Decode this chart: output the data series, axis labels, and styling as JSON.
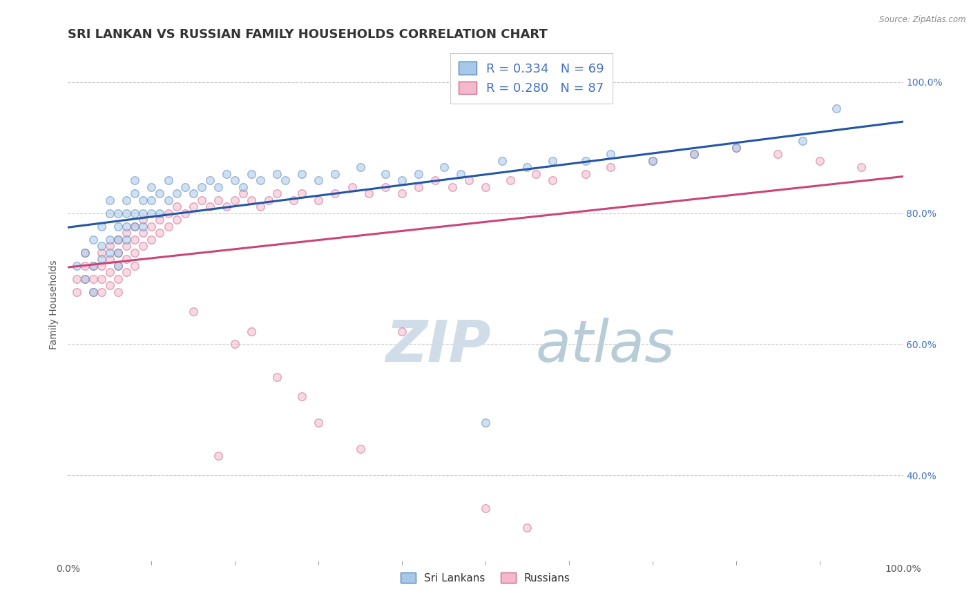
{
  "title": "SRI LANKAN VS RUSSIAN FAMILY HOUSEHOLDS CORRELATION CHART",
  "source_text": "Source: ZipAtlas.com",
  "ylabel": "Family Households",
  "xmin": 0.0,
  "xmax": 1.0,
  "ymin": 0.27,
  "ymax": 1.05,
  "y_tick_values": [
    0.4,
    0.6,
    0.8,
    1.0
  ],
  "y_tick_labels": [
    "40.0%",
    "60.0%",
    "80.0%",
    "100.0%"
  ],
  "legend_r1": "R = 0.334",
  "legend_n1": "N = 69",
  "legend_r2": "R = 0.280",
  "legend_n2": "N = 87",
  "color_sri": "#a8c8e8",
  "color_rus": "#f4b8cc",
  "edge_color_sri": "#5588bb",
  "edge_color_rus": "#cc6688",
  "trendline_color_sri": "#2255aa",
  "trendline_color_rus": "#cc4477",
  "watermark_zip": "ZIP",
  "watermark_atlas": "atlas",
  "watermark_color_zip": "#d0dde8",
  "watermark_color_atlas": "#b8ccd8",
  "grid_color": "#cccccc",
  "grid_linestyle": "--",
  "background_color": "#ffffff",
  "title_fontsize": 13,
  "axis_label_fontsize": 10,
  "tick_fontsize": 10,
  "legend_fontsize": 13,
  "watermark_fontsize": 60,
  "scatter_size": 70,
  "scatter_alpha": 0.55,
  "scatter_linewidth": 1.0,
  "sri_lankans_x": [
    0.01,
    0.02,
    0.02,
    0.03,
    0.03,
    0.03,
    0.04,
    0.04,
    0.04,
    0.05,
    0.05,
    0.05,
    0.05,
    0.06,
    0.06,
    0.06,
    0.06,
    0.06,
    0.07,
    0.07,
    0.07,
    0.07,
    0.08,
    0.08,
    0.08,
    0.08,
    0.09,
    0.09,
    0.09,
    0.1,
    0.1,
    0.1,
    0.11,
    0.11,
    0.12,
    0.12,
    0.13,
    0.14,
    0.15,
    0.16,
    0.17,
    0.18,
    0.19,
    0.2,
    0.21,
    0.22,
    0.23,
    0.25,
    0.26,
    0.28,
    0.3,
    0.32,
    0.35,
    0.38,
    0.4,
    0.42,
    0.45,
    0.47,
    0.5,
    0.52,
    0.55,
    0.58,
    0.62,
    0.65,
    0.7,
    0.75,
    0.8,
    0.88,
    0.92
  ],
  "sri_lankans_y": [
    0.72,
    0.74,
    0.7,
    0.76,
    0.72,
    0.68,
    0.75,
    0.78,
    0.73,
    0.76,
    0.8,
    0.74,
    0.82,
    0.78,
    0.76,
    0.8,
    0.74,
    0.72,
    0.82,
    0.78,
    0.8,
    0.76,
    0.8,
    0.83,
    0.78,
    0.85,
    0.8,
    0.82,
    0.78,
    0.82,
    0.84,
    0.8,
    0.83,
    0.8,
    0.82,
    0.85,
    0.83,
    0.84,
    0.83,
    0.84,
    0.85,
    0.84,
    0.86,
    0.85,
    0.84,
    0.86,
    0.85,
    0.86,
    0.85,
    0.86,
    0.85,
    0.86,
    0.87,
    0.86,
    0.85,
    0.86,
    0.87,
    0.86,
    0.48,
    0.88,
    0.87,
    0.88,
    0.88,
    0.89,
    0.88,
    0.89,
    0.9,
    0.91,
    0.96
  ],
  "russians_x": [
    0.01,
    0.01,
    0.02,
    0.02,
    0.02,
    0.03,
    0.03,
    0.03,
    0.04,
    0.04,
    0.04,
    0.04,
    0.05,
    0.05,
    0.05,
    0.05,
    0.06,
    0.06,
    0.06,
    0.06,
    0.06,
    0.07,
    0.07,
    0.07,
    0.07,
    0.08,
    0.08,
    0.08,
    0.08,
    0.09,
    0.09,
    0.09,
    0.1,
    0.1,
    0.11,
    0.11,
    0.12,
    0.12,
    0.13,
    0.13,
    0.14,
    0.15,
    0.16,
    0.17,
    0.18,
    0.19,
    0.2,
    0.21,
    0.22,
    0.23,
    0.24,
    0.25,
    0.27,
    0.28,
    0.3,
    0.32,
    0.34,
    0.36,
    0.38,
    0.4,
    0.42,
    0.44,
    0.46,
    0.48,
    0.5,
    0.53,
    0.56,
    0.58,
    0.62,
    0.65,
    0.7,
    0.75,
    0.8,
    0.85,
    0.9,
    0.95,
    0.2,
    0.22,
    0.25,
    0.28,
    0.15,
    0.18,
    0.3,
    0.35,
    0.4,
    0.5,
    0.55
  ],
  "russians_y": [
    0.7,
    0.68,
    0.72,
    0.7,
    0.74,
    0.72,
    0.7,
    0.68,
    0.72,
    0.7,
    0.74,
    0.68,
    0.73,
    0.71,
    0.75,
    0.69,
    0.74,
    0.72,
    0.76,
    0.7,
    0.68,
    0.75,
    0.73,
    0.77,
    0.71,
    0.76,
    0.74,
    0.78,
    0.72,
    0.77,
    0.75,
    0.79,
    0.78,
    0.76,
    0.79,
    0.77,
    0.8,
    0.78,
    0.81,
    0.79,
    0.8,
    0.81,
    0.82,
    0.81,
    0.82,
    0.81,
    0.82,
    0.83,
    0.82,
    0.81,
    0.82,
    0.83,
    0.82,
    0.83,
    0.82,
    0.83,
    0.84,
    0.83,
    0.84,
    0.83,
    0.84,
    0.85,
    0.84,
    0.85,
    0.84,
    0.85,
    0.86,
    0.85,
    0.86,
    0.87,
    0.88,
    0.89,
    0.9,
    0.89,
    0.88,
    0.87,
    0.6,
    0.62,
    0.55,
    0.52,
    0.65,
    0.43,
    0.48,
    0.44,
    0.62,
    0.35,
    0.32
  ]
}
